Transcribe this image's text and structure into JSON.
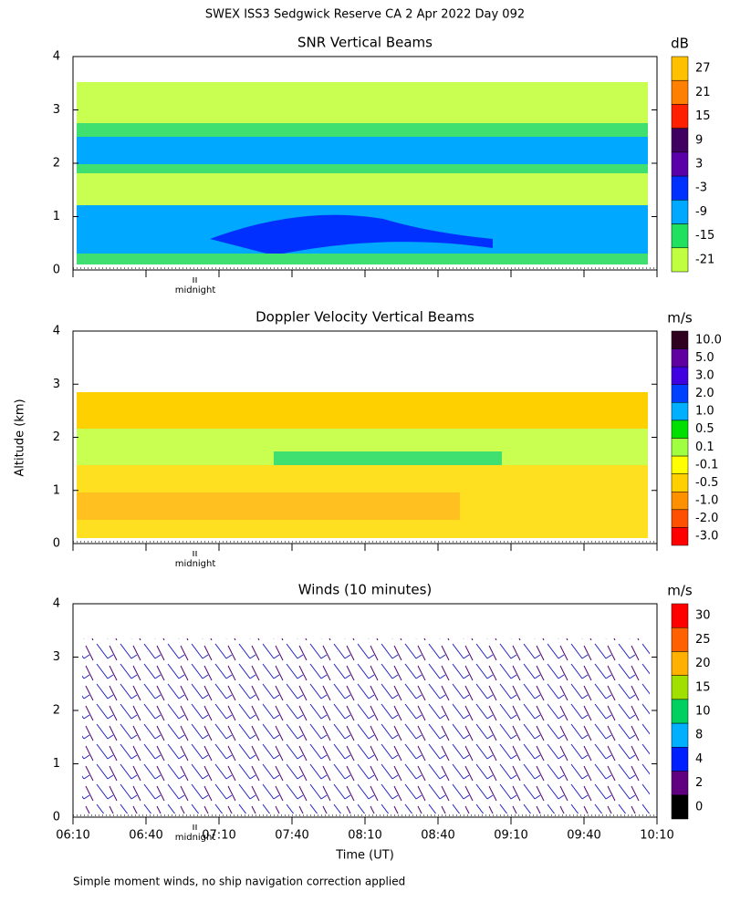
{
  "title": "SWEX ISS3 Sedgwick Reserve CA   2 Apr 2022 Day 092",
  "ylabel": "Altitude (km)",
  "xlabel": "Time (UT)",
  "footnote": "Simple moment winds, no ship navigation correction applied",
  "chart_data": [
    {
      "type": "contour",
      "title": "SNR Vertical Beams",
      "annotation": "midnight",
      "ylim": [
        0,
        4
      ],
      "yticks": [
        0,
        1,
        2,
        3,
        4
      ],
      "colorbar_unit": "dB",
      "levels": [
        {
          "value": 27,
          "color": "#ffc000"
        },
        {
          "value": 21,
          "color": "#ff8000"
        },
        {
          "value": 15,
          "color": "#ff2000"
        },
        {
          "value": 9,
          "color": "#400060"
        },
        {
          "value": 3,
          "color": "#5a00a8"
        },
        {
          "value": -3,
          "color": "#0030ff"
        },
        {
          "value": -9,
          "color": "#00a8ff"
        },
        {
          "value": -15,
          "color": "#20e060"
        },
        {
          "value": -21,
          "color": "#c0ff40"
        }
      ]
    },
    {
      "type": "contour",
      "title": "Doppler Velocity Vertical Beams",
      "annotation": "midnight",
      "ylim": [
        0,
        4
      ],
      "yticks": [
        0,
        1,
        2,
        3,
        4
      ],
      "colorbar_unit": "m/s",
      "levels": [
        {
          "value": 10,
          "label": "10.0",
          "color": "#300020"
        },
        {
          "value": 5,
          "label": "5.0",
          "color": "#6000a0"
        },
        {
          "value": 3,
          "label": "3.0",
          "color": "#4000e0"
        },
        {
          "value": 2,
          "label": "2.0",
          "color": "#0040ff"
        },
        {
          "value": 1,
          "label": "1.0",
          "color": "#00b0ff"
        },
        {
          "value": 0.5,
          "color": "#00e000"
        },
        {
          "value": 0.1,
          "color": "#a0ff40"
        },
        {
          "value": -0.1,
          "color": "#ffff00"
        },
        {
          "value": -0.5,
          "color": "#ffd000"
        },
        {
          "value": -1,
          "label": "-1.0",
          "color": "#ff9000"
        },
        {
          "value": -2,
          "label": "-2.0",
          "color": "#ff5000"
        },
        {
          "value": -3,
          "label": "-3.0",
          "color": "#ff0000"
        }
      ]
    },
    {
      "type": "barbs",
      "title": "Winds (10 minutes)",
      "annotation": "midnight",
      "ylim": [
        0,
        4
      ],
      "yticks": [
        0,
        1,
        2,
        3,
        4
      ],
      "colorbar_unit": "m/s",
      "xticks": [
        "06:10",
        "06:40",
        "07:10",
        "07:40",
        "08:10",
        "08:40",
        "09:10",
        "09:40",
        "10:10"
      ],
      "levels": [
        {
          "value": 30,
          "color": "#ff0000"
        },
        {
          "value": 25,
          "color": "#ff6000"
        },
        {
          "value": 20,
          "color": "#ffb000"
        },
        {
          "value": 15,
          "color": "#a0e000"
        },
        {
          "value": 10,
          "color": "#00d060"
        },
        {
          "value": 8,
          "color": "#00b0ff"
        },
        {
          "value": 4,
          "color": "#0020ff"
        },
        {
          "value": 2,
          "color": "#600080"
        },
        {
          "value": 0,
          "color": "#000000"
        }
      ]
    }
  ]
}
